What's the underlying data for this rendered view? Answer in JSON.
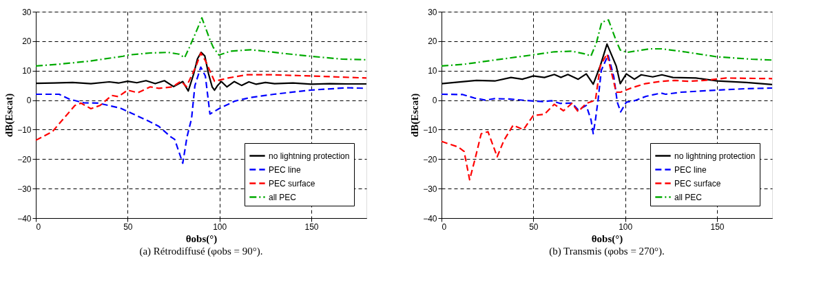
{
  "chart_data": [
    {
      "type": "line",
      "title": "(a) Rétrodiffusé (φobs = 90°).",
      "xlabel": "θobs(°)",
      "ylabel": "dB(Escat)",
      "xlim": [
        0,
        180
      ],
      "ylim": [
        -40,
        30
      ],
      "xticks": [
        0,
        50,
        100,
        150
      ],
      "yticks": [
        -40,
        -30,
        -20,
        -10,
        0,
        10,
        20,
        30
      ],
      "grid": true,
      "legend": "bottom right",
      "marker": "none",
      "series": [
        {
          "name": "no lightning protection",
          "color": "#000000",
          "line_style": "solid",
          "x": [
            0,
            10,
            20,
            30,
            40,
            45,
            50,
            55,
            60,
            65,
            70,
            75,
            80,
            83,
            86,
            88,
            90,
            92,
            94,
            96,
            97.3,
            99,
            101,
            104,
            108,
            112,
            116,
            120,
            125,
            130,
            140,
            150,
            160,
            170,
            180
          ],
          "values": [
            5.7,
            5.8,
            6.0,
            5.6,
            6.2,
            5.8,
            6.4,
            5.9,
            6.6,
            5.6,
            6.6,
            4.6,
            6.3,
            3.1,
            9,
            14,
            16.2,
            15,
            9,
            4.5,
            3.4,
            5.0,
            6.3,
            4.5,
            6.3,
            5.0,
            6.2,
            5.4,
            6.0,
            5.6,
            5.8,
            5.4,
            5.6,
            5.5,
            5.5
          ]
        },
        {
          "name": "PEC line",
          "color": "#0000ff",
          "line_style": "dashed",
          "x": [
            0,
            12.7,
            18,
            26,
            34,
            46,
            52,
            62,
            67,
            73.6,
            75.6,
            80,
            82.3,
            84.8,
            86.6,
            89.8,
            92.3,
            94.8,
            99.7,
            108.5,
            117,
            129.6,
            149.5,
            169.4,
            180
          ],
          "values": [
            2,
            2,
            0.4,
            -0.9,
            -1,
            -2.7,
            -4.4,
            -7.3,
            -8.9,
            -12.5,
            -13.3,
            -21.4,
            -12.5,
            -6.2,
            4.9,
            11.2,
            8.2,
            -4.7,
            -2.9,
            -0.3,
            0.9,
            2,
            3.4,
            4.2,
            4
          ]
        },
        {
          "name": "PEC surface",
          "color": "#ff0000",
          "line_style": "dashed",
          "x": [
            0,
            9,
            15.2,
            21.3,
            24.6,
            30,
            35,
            41.3,
            45,
            50,
            55.5,
            62.3,
            67,
            74.4,
            79,
            82,
            87.3,
            89.8,
            92.3,
            97.3,
            104.7,
            114.6,
            129.5,
            149.5,
            180
          ],
          "values": [
            -13.6,
            -10.7,
            -6.2,
            -1.8,
            -1.0,
            -2.9,
            -1.8,
            1.6,
            1.2,
            3.4,
            2.5,
            4.5,
            4.0,
            4.5,
            6.4,
            4.6,
            11.6,
            16,
            13.4,
            6.4,
            7.5,
            8.6,
            8.6,
            8.2,
            7.5
          ]
        },
        {
          "name": "all PEC",
          "color": "#00aa00",
          "line_style": "dashdot",
          "x": [
            0,
            12.7,
            28.8,
            47.5,
            50,
            62.3,
            72,
            78,
            81,
            83.6,
            87.3,
            90.4,
            94.8,
            96.6,
            99.7,
            106,
            117,
            123,
            135.6,
            149.5,
            167,
            180
          ],
          "values": [
            11.6,
            12.2,
            13.2,
            14.9,
            15.3,
            16.0,
            16.2,
            15.6,
            14.4,
            17.9,
            23.2,
            27.9,
            20.5,
            17.9,
            15.3,
            16.6,
            17.1,
            16.7,
            15.8,
            14.9,
            13.9,
            13.7
          ]
        }
      ]
    },
    {
      "type": "line",
      "title": "(b) Transmis (φobs = 270°).",
      "xlabel": "θobs(°)",
      "ylabel": "dB(Escat)",
      "xlim": [
        0,
        180
      ],
      "ylim": [
        -40,
        30
      ],
      "xticks": [
        0,
        50,
        100,
        150
      ],
      "yticks": [
        -40,
        -30,
        -20,
        -10,
        0,
        10,
        20,
        30
      ],
      "grid": true,
      "legend": "bottom right",
      "marker": "none",
      "series": [
        {
          "name": "no lightning protection",
          "color": "#000000",
          "line_style": "solid",
          "x": [
            0,
            19,
            29,
            37.8,
            44,
            50,
            56,
            61.4,
            65,
            68.8,
            74.4,
            78.8,
            82.6,
            86.4,
            90.1,
            95.1,
            97.3,
            100.6,
            105,
            108.7,
            115,
            120,
            126,
            138.5,
            150,
            166,
            180
          ],
          "values": [
            5.6,
            6.7,
            6.5,
            7.7,
            7.1,
            8.2,
            7.7,
            8.7,
            7.7,
            8.7,
            7.1,
            8.9,
            5.4,
            11.6,
            19.0,
            11.6,
            5.6,
            8.9,
            7.1,
            8.6,
            7.9,
            8.6,
            7.7,
            7.5,
            6.5,
            6.0,
            5.3
          ]
        },
        {
          "name": "PEC line",
          "color": "#0000ff",
          "line_style": "dashed",
          "x": [
            0,
            11.6,
            17.9,
            24,
            29,
            36.6,
            47.8,
            55,
            60,
            64.5,
            71,
            74.4,
            78.8,
            81.4,
            82.6,
            83.8,
            85.3,
            87,
            90.7,
            93.8,
            95.7,
            97.5,
            100.6,
            105,
            111.4,
            119.5,
            122,
            130.4,
            147.4,
            166,
            180
          ],
          "values": [
            2,
            1.9,
            0.7,
            0,
            0.5,
            0.4,
            -0.2,
            -0.5,
            -0.2,
            -1.1,
            -1,
            -3.3,
            -1.8,
            -6.7,
            -11.4,
            -6.7,
            0.4,
            10.1,
            15.3,
            7.9,
            -0.7,
            -4.0,
            -0.7,
            -0.2,
            1.3,
            2.4,
            2.0,
            2.7,
            3.3,
            3.9,
            4.1
          ]
        },
        {
          "name": "PEC surface",
          "color": "#ff0000",
          "line_style": "dashed",
          "x": [
            0,
            9.1,
            12.3,
            15.3,
            18.4,
            21.6,
            25.3,
            30.3,
            34,
            39,
            44.6,
            50,
            56,
            61.4,
            66.4,
            71,
            74.4,
            78.8,
            83.8,
            86.4,
            90.1,
            95.1,
            97.5,
            103.6,
            111,
            120,
            127,
            134.5,
            143,
            155,
            180
          ],
          "values": [
            -14.0,
            -15.9,
            -17.4,
            -27,
            -19.6,
            -11.4,
            -10.7,
            -19.2,
            -13.6,
            -8.5,
            -10,
            -5.2,
            -4.8,
            -1.4,
            -3.6,
            -1.1,
            -3.9,
            -1.1,
            0,
            11.6,
            15.7,
            2.7,
            2.7,
            4.2,
            5.6,
            6.4,
            6.7,
            6.4,
            6.7,
            7.5,
            7.3
          ]
        },
        {
          "name": "all PEC",
          "color": "#00aa00",
          "line_style": "dashdot",
          "x": [
            0,
            12.7,
            27.7,
            49,
            61.4,
            71,
            78.8,
            81.3,
            84.3,
            87.2,
            90.9,
            95.1,
            97.3,
            101,
            113.5,
            120,
            132.2,
            149.9,
            168.6,
            180
          ],
          "values": [
            11.6,
            12.2,
            13.5,
            15.3,
            16.4,
            16.6,
            15.6,
            14.9,
            19.4,
            26.4,
            27.2,
            20.1,
            17.0,
            16.2,
            17.4,
            17.4,
            16.4,
            14.7,
            13.9,
            13.6
          ]
        }
      ]
    }
  ]
}
